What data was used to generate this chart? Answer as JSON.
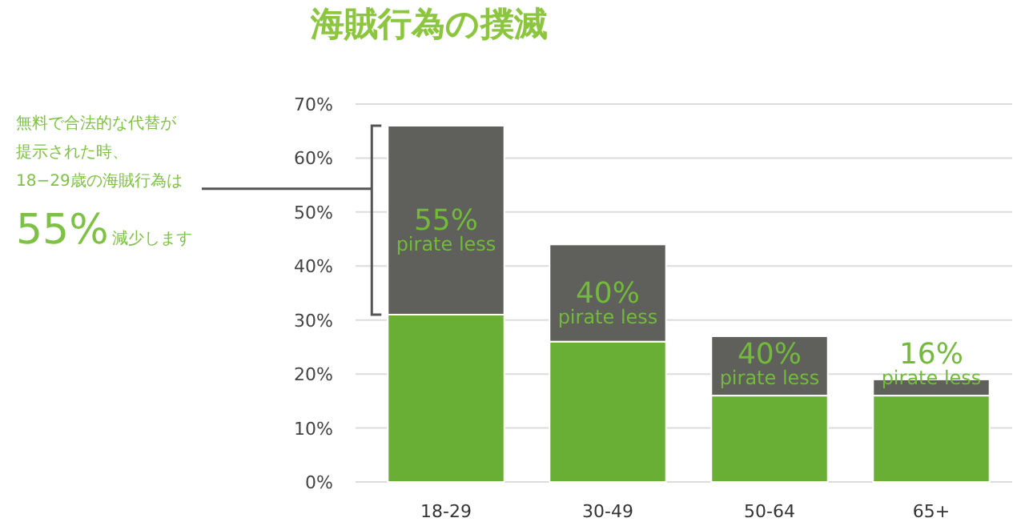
{
  "chart_data": {
    "type": "bar",
    "title": "海賊行為の撲滅",
    "stacked": true,
    "categories": [
      "18-29",
      "30-49",
      "50-64",
      "65+"
    ],
    "series": [
      {
        "color": "#6aaf35",
        "values": [
          31,
          26,
          16,
          16
        ]
      },
      {
        "color": "#5f5f5b",
        "values": [
          35,
          18,
          11,
          3
        ]
      }
    ],
    "ylim": [
      0,
      70
    ],
    "yticks": [
      {
        "value": 0,
        "label": "0%"
      },
      {
        "value": 10,
        "label": "10%"
      },
      {
        "value": 20,
        "label": "20%"
      },
      {
        "value": 30,
        "label": "30%"
      },
      {
        "value": 40,
        "label": "40%"
      },
      {
        "value": 50,
        "label": "50%"
      },
      {
        "value": 60,
        "label": "60%"
      },
      {
        "value": 70,
        "label": "70%"
      }
    ],
    "grid": "y",
    "annotations": [
      "無料で合法的な代替が",
      "提示された時、",
      "18−29歳の海賊行為は",
      "55%",
      "減少します",
      "55%",
      "pirate less",
      "40%",
      "pirate less",
      "40%",
      "pirate less",
      "16%",
      "pirate less"
    ]
  }
}
